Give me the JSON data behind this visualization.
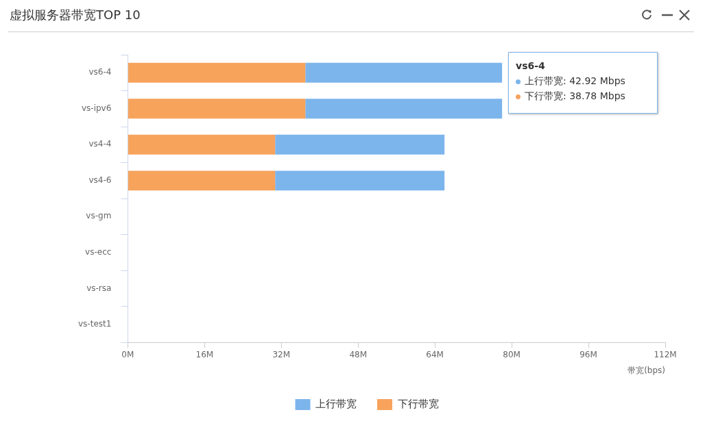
{
  "chart_data": {
    "type": "bar",
    "title": "虚拟服务器带宽TOP 10",
    "orientation": "horizontal",
    "stacked": true,
    "categories": [
      "vs6-4",
      "vs-ipv6",
      "vs4-4",
      "vs4-6",
      "vs-gm",
      "vs-ecc",
      "vs-rsa",
      "vs-test1"
    ],
    "series": [
      {
        "name": "下行带宽",
        "color": "#f7a35c",
        "values": [
          37,
          37,
          30.7,
          30.7,
          0,
          0,
          0,
          0
        ]
      },
      {
        "name": "上行带宽",
        "color": "#7cb5ec",
        "values": [
          41,
          41,
          35.3,
          35.3,
          0,
          0,
          0,
          0
        ]
      }
    ],
    "xlim": [
      0,
      112
    ],
    "xticks": [
      {
        "value": 0,
        "label": "0M"
      },
      {
        "value": 16,
        "label": "16M"
      },
      {
        "value": 32,
        "label": "32M"
      },
      {
        "value": 48,
        "label": "48M"
      },
      {
        "value": 64,
        "label": "64M"
      },
      {
        "value": 80,
        "label": "80M"
      },
      {
        "value": 96,
        "label": "96M"
      },
      {
        "value": 112,
        "label": "112M"
      }
    ],
    "xlabel": "带宽(bps)",
    "legend": "bottom",
    "grid": false,
    "annotations": [
      "vs6-4",
      "上行带宽: 42.92 Mbps",
      "下行带宽: 38.78 Mbps"
    ]
  }
}
